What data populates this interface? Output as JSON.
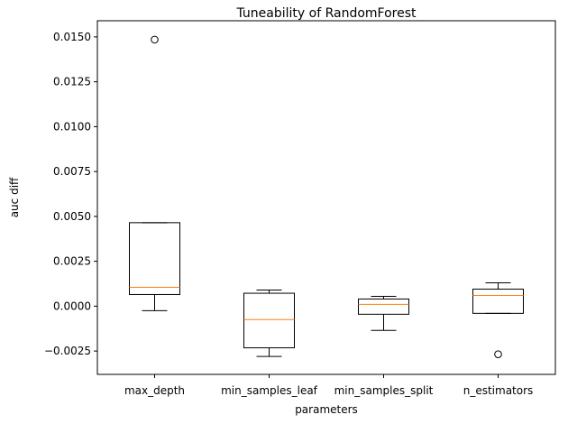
{
  "chart_data": {
    "type": "box",
    "title": "Tuneability of RandomForest",
    "xlabel": "parameters",
    "ylabel": "auc diff",
    "ylim": [
      -0.0038,
      0.0159
    ],
    "yticks": [
      "−0.0025",
      "0.0000",
      "0.0025",
      "0.0050",
      "0.0075",
      "0.0100",
      "0.0125",
      "0.0150"
    ],
    "grid": false,
    "colors": {
      "box": "#000000",
      "median": "#ff7f0e"
    },
    "categories": [
      "max_depth",
      "min_samples_leaf",
      "min_samples_split",
      "n_estimators"
    ],
    "boxes": [
      {
        "label": "max_depth",
        "whisker_low": -0.00025,
        "q1": 0.00065,
        "median": 0.00105,
        "q3": 0.00465,
        "whisker_high": 0.00465,
        "outliers": [
          0.01485
        ]
      },
      {
        "label": "min_samples_leaf",
        "whisker_low": -0.0028,
        "q1": -0.00232,
        "median": -0.00075,
        "q3": 0.00072,
        "whisker_high": 0.0009,
        "outliers": []
      },
      {
        "label": "min_samples_split",
        "whisker_low": -0.00135,
        "q1": -0.00045,
        "median": 0.0001,
        "q3": 0.0004,
        "whisker_high": 0.00055,
        "outliers": []
      },
      {
        "label": "n_estimators",
        "whisker_low": -0.0004,
        "q1": -0.0004,
        "median": 0.0006,
        "q3": 0.00095,
        "whisker_high": 0.0013,
        "outliers": [
          -0.00268
        ]
      }
    ]
  }
}
